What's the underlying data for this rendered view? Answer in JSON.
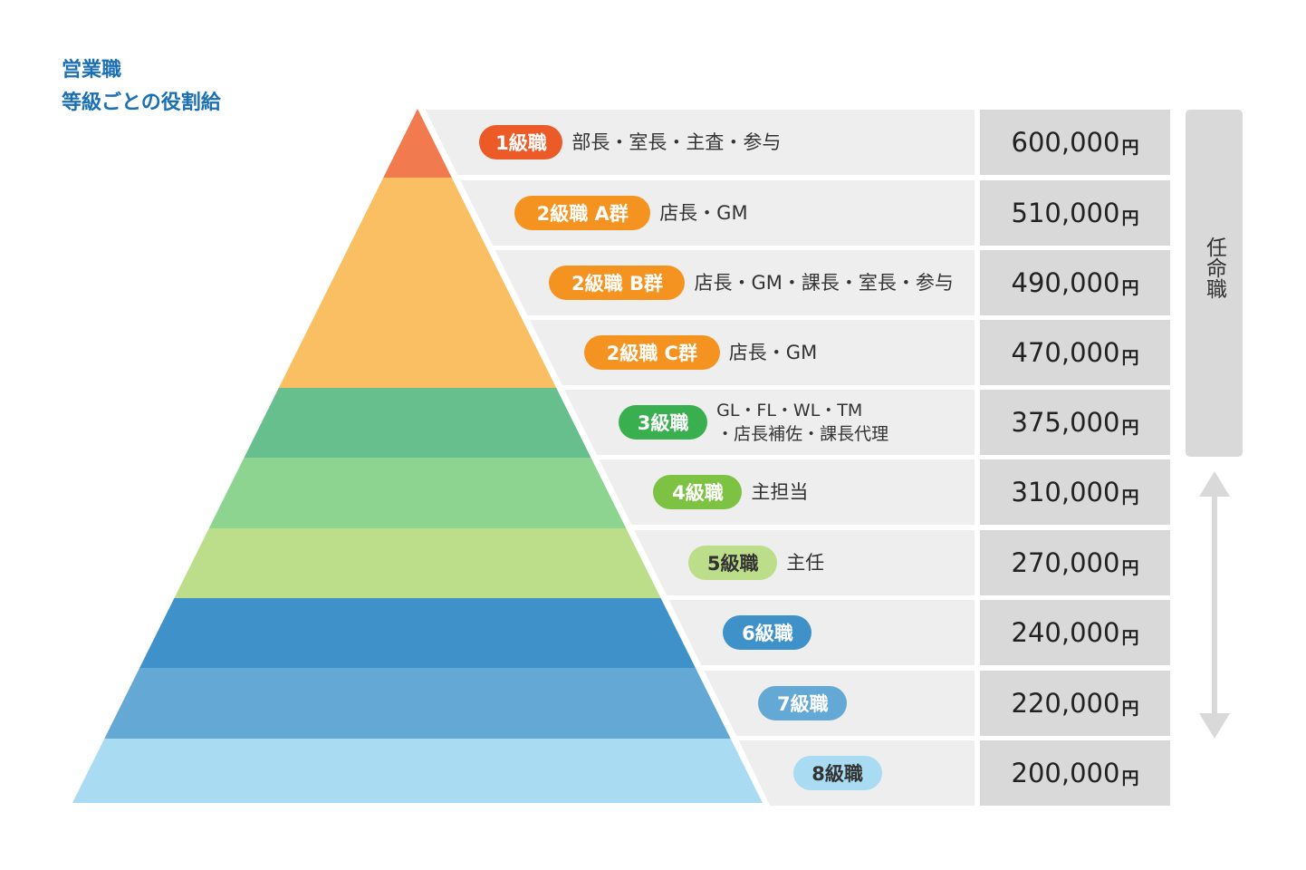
{
  "title": {
    "line1": "営業職",
    "line2": "等級ごとの役割給"
  },
  "appointed_label": "任命職",
  "colors": {
    "title": "#1b6fb5",
    "row_bg": "#eeeeee",
    "salary_bg": "#d9d9d9"
  },
  "grades": [
    {
      "badge": "1級職",
      "role": [
        "部長・室長・主査・参与"
      ],
      "salary": "600,000",
      "unit": "円",
      "layer_color": "#f27a4f",
      "badge_color": "#ec5a28",
      "badge_dark": false
    },
    {
      "badge": "2級職 A群",
      "role": [
        "店長・GM"
      ],
      "salary": "510,000",
      "unit": "円",
      "layer_color": "#fbbf63",
      "badge_color": "#f4931f",
      "badge_dark": false
    },
    {
      "badge": "2級職 B群",
      "role": [
        "店長・GM・課長・室長・参与"
      ],
      "salary": "490,000",
      "unit": "円",
      "layer_color": "#fbbf63",
      "badge_color": "#f4931f",
      "badge_dark": false
    },
    {
      "badge": "2級職 C群",
      "role": [
        "店長・GM"
      ],
      "salary": "470,000",
      "unit": "円",
      "layer_color": "#fbbf63",
      "badge_color": "#f4931f",
      "badge_dark": false
    },
    {
      "badge": "3級職",
      "role": [
        "GL・FL・WL・TM",
        "・店長補佐・課長代理"
      ],
      "salary": "375,000",
      "unit": "円",
      "layer_color": "#66bf8c",
      "badge_color": "#3aaf4f",
      "badge_dark": false
    },
    {
      "badge": "4級職",
      "role": [
        "主担当"
      ],
      "salary": "310,000",
      "unit": "円",
      "layer_color": "#8cd48f",
      "badge_color": "#7dc242",
      "badge_dark": false
    },
    {
      "badge": "5級職",
      "role": [
        "主任"
      ],
      "salary": "270,000",
      "unit": "円",
      "layer_color": "#bcdd8a",
      "badge_color": "#bcdd8a",
      "badge_dark": true
    },
    {
      "badge": "6級職",
      "role": [],
      "salary": "240,000",
      "unit": "円",
      "layer_color": "#3e91c9",
      "badge_color": "#3e91c9",
      "badge_dark": false
    },
    {
      "badge": "7級職",
      "role": [],
      "salary": "220,000",
      "unit": "円",
      "layer_color": "#64a8d6",
      "badge_color": "#64a8d6",
      "badge_dark": false
    },
    {
      "badge": "8級職",
      "role": [],
      "salary": "200,000",
      "unit": "円",
      "layer_color": "#a9dcf2",
      "badge_color": "#a9dcf2",
      "badge_dark": true
    }
  ]
}
